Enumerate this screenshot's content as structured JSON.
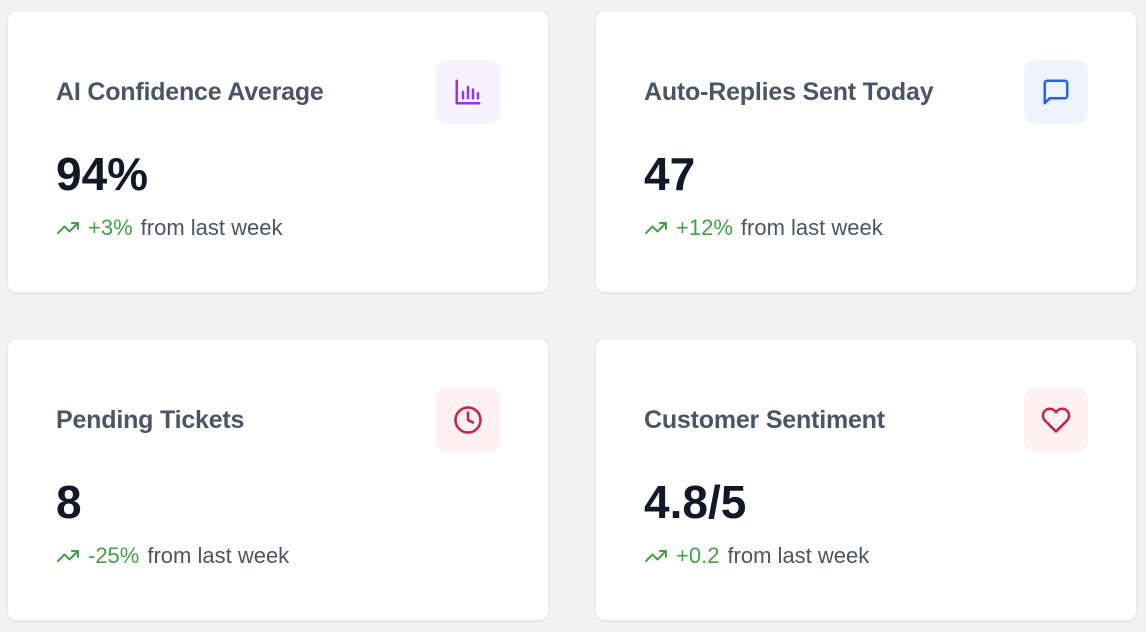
{
  "colors": {
    "page_bg": "#f2f2f3",
    "card_bg": "#ffffff",
    "title": "#4b5563",
    "value": "#111827",
    "trend_positive": "#43a047"
  },
  "cards": [
    {
      "title": "AI Confidence Average",
      "value": "94%",
      "change": "+3%",
      "change_label": "from last week",
      "icon": "bar-chart-icon",
      "icon_color": "#9333ea",
      "icon_bg": "#f7f3fe"
    },
    {
      "title": "Auto-Replies Sent Today",
      "value": "47",
      "change": "+12%",
      "change_label": "from last week",
      "icon": "message-square-icon",
      "icon_color": "#2563eb",
      "icon_bg": "#eef4fe"
    },
    {
      "title": "Pending Tickets",
      "value": "8",
      "change": "-25%",
      "change_label": "from last week",
      "icon": "clock-icon",
      "icon_color": "#c81e4a",
      "icon_bg": "#fdf1f3"
    },
    {
      "title": "Customer Sentiment",
      "value": "4.8/5",
      "change": "+0.2",
      "change_label": "from last week",
      "icon": "heart-icon",
      "icon_color": "#c81e4a",
      "icon_bg": "#fdf1f3"
    }
  ]
}
